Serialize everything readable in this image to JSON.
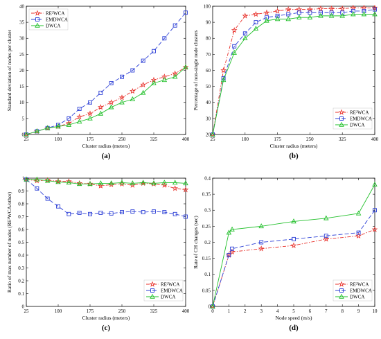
{
  "chart_data": [
    {
      "type": "line",
      "caption": "(a)",
      "xlabel": "Cluster radius (meters)",
      "ylabel": "Standard deviation of nodes per cluster",
      "xlim": [
        25,
        400
      ],
      "ylim": [
        0,
        40
      ],
      "xticks": [
        25,
        100,
        175,
        250,
        325,
        400
      ],
      "yticks": [
        0,
        5,
        10,
        15,
        20,
        25,
        30,
        35,
        40
      ],
      "legend_position": "top-left",
      "x": [
        25,
        50,
        75,
        100,
        125,
        150,
        175,
        200,
        225,
        250,
        275,
        300,
        325,
        350,
        375,
        400
      ],
      "series": [
        {
          "name": "RE²WCA",
          "color": "#e8302a",
          "dash": "dashdot",
          "marker": "star",
          "values": [
            0,
            1,
            2,
            2.5,
            3.5,
            5.5,
            6.5,
            8.5,
            10,
            11.5,
            13.5,
            15.5,
            17,
            18,
            19,
            21
          ]
        },
        {
          "name": "EMDWCA",
          "color": "#2c3fd6",
          "dash": "dashed",
          "marker": "square",
          "values": [
            0,
            1,
            2,
            3,
            5,
            8,
            10,
            13,
            16,
            18,
            20,
            23,
            26,
            30,
            34,
            38
          ]
        },
        {
          "name": "DWCA",
          "color": "#22c02b",
          "dash": "solid",
          "marker": "triangle",
          "values": [
            0,
            1,
            2,
            2.5,
            3,
            4,
            5,
            6.5,
            8.5,
            10,
            11,
            13,
            16,
            17,
            18,
            21
          ]
        }
      ]
    },
    {
      "type": "line",
      "caption": "(b)",
      "xlabel": "Cluster radius (meters)",
      "ylabel": "Percentage of non-single node clusters",
      "xlim": [
        25,
        400
      ],
      "ylim": [
        20,
        100
      ],
      "xticks": [
        25,
        100,
        175,
        250,
        325,
        400
      ],
      "yticks": [
        20,
        30,
        40,
        50,
        60,
        70,
        80,
        90,
        100
      ],
      "legend_position": "bottom-right",
      "x": [
        25,
        50,
        75,
        100,
        125,
        150,
        175,
        200,
        225,
        250,
        275,
        300,
        325,
        350,
        375,
        400
      ],
      "series": [
        {
          "name": "RE²WCA",
          "color": "#e8302a",
          "dash": "dashdot",
          "marker": "star",
          "values": [
            20,
            60,
            85,
            94,
            95,
            96,
            97,
            98,
            98,
            98,
            98.5,
            98.5,
            98.5,
            99,
            99,
            99
          ]
        },
        {
          "name": "EMDWCA",
          "color": "#2c3fd6",
          "dash": "dashed",
          "marker": "square",
          "values": [
            20,
            55,
            75,
            83,
            90,
            93,
            94,
            95,
            96,
            96,
            96,
            96,
            96,
            97,
            97,
            98
          ]
        },
        {
          "name": "DWCA",
          "color": "#22c02b",
          "dash": "solid",
          "marker": "triangle",
          "values": [
            20,
            54,
            71,
            80,
            86,
            91,
            92,
            92,
            93,
            93,
            94,
            94,
            94,
            95,
            95,
            95
          ]
        }
      ]
    },
    {
      "type": "line",
      "caption": "(c)",
      "xlabel": "Cluster radius (meters)",
      "ylabel": "Ratio of max number of nodes (RE²WCA/other)",
      "xlim": [
        25,
        400
      ],
      "ylim": [
        0,
        1
      ],
      "xticks": [
        25,
        100,
        175,
        250,
        325,
        400
      ],
      "yticks": [
        0,
        0.1,
        0.2,
        0.3,
        0.4,
        0.5,
        0.6,
        0.7,
        0.8,
        0.9,
        1
      ],
      "legend_position": "bottom-right",
      "x": [
        25,
        50,
        75,
        100,
        125,
        150,
        175,
        200,
        225,
        250,
        275,
        300,
        325,
        350,
        375,
        400
      ],
      "series": [
        {
          "name": "RE²WCA",
          "color": "#e8302a",
          "dash": "dashdot",
          "marker": "star",
          "values": [
            0.99,
            0.98,
            0.985,
            0.975,
            0.975,
            0.96,
            0.955,
            0.94,
            0.95,
            0.955,
            0.945,
            0.96,
            0.955,
            0.945,
            0.92,
            0.91
          ]
        },
        {
          "name": "EMDWCA",
          "color": "#2c3fd6",
          "dash": "dashed",
          "marker": "square",
          "values": [
            0.99,
            0.92,
            0.84,
            0.78,
            0.72,
            0.73,
            0.72,
            0.73,
            0.725,
            0.735,
            0.74,
            0.735,
            0.74,
            0.735,
            0.72,
            0.7
          ]
        },
        {
          "name": "DWCA",
          "color": "#22c02b",
          "dash": "solid",
          "marker": "triangle",
          "values": [
            0.99,
            0.99,
            0.98,
            0.97,
            0.965,
            0.955,
            0.955,
            0.96,
            0.96,
            0.965,
            0.96,
            0.965,
            0.96,
            0.965,
            0.965,
            0.96
          ]
        }
      ]
    },
    {
      "type": "line",
      "caption": "(d)",
      "xlabel": "Node speed (m/s)",
      "ylabel": "Rate of CH changes (sec)",
      "xlim": [
        0,
        10
      ],
      "ylim": [
        0,
        0.4
      ],
      "xticks": [
        0,
        1,
        2,
        3,
        4,
        5,
        6,
        7,
        8,
        9,
        10
      ],
      "yticks": [
        0,
        0.05,
        0.1,
        0.15,
        0.2,
        0.25,
        0.3,
        0.35,
        0.4
      ],
      "legend_position": "bottom-right",
      "x": [
        0,
        1,
        1.2,
        3,
        5,
        7,
        9,
        10
      ],
      "series": [
        {
          "name": "RE²WCA",
          "color": "#e8302a",
          "dash": "dashdot",
          "marker": "star",
          "values": [
            0,
            0.16,
            0.17,
            0.18,
            0.19,
            0.21,
            0.22,
            0.24
          ]
        },
        {
          "name": "EMDWCA",
          "color": "#2c3fd6",
          "dash": "dashed",
          "marker": "square",
          "values": [
            0,
            0.16,
            0.18,
            0.2,
            0.21,
            0.22,
            0.23,
            0.3
          ]
        },
        {
          "name": "DWCA",
          "color": "#22c02b",
          "dash": "solid",
          "marker": "triangle",
          "values": [
            0,
            0.23,
            0.24,
            0.25,
            0.265,
            0.275,
            0.29,
            0.38
          ]
        }
      ]
    }
  ]
}
